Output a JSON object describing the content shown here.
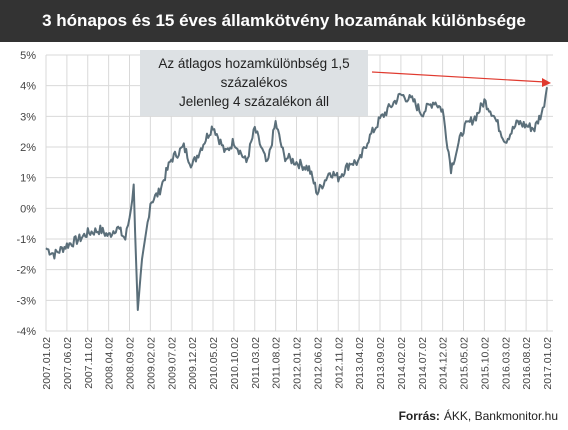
{
  "chart_data": {
    "type": "line",
    "title": "3 hónapos és 15 éves államkötvény hozamának különbsége",
    "xlabel": "",
    "ylabel": "",
    "ylim": [
      -4,
      5
    ],
    "yticks": [
      "5%",
      "4%",
      "3%",
      "2%",
      "1%",
      "0%",
      "-1%",
      "-2%",
      "-3%",
      "-4%"
    ],
    "xticks": [
      "2007.01.02",
      "2007.06.02",
      "2007.11.02",
      "2008.04.02",
      "2008.09.02",
      "2009.02.02",
      "2009.07.02",
      "2009.12.02",
      "2010.05.02",
      "2010.10.02",
      "2011.03.02",
      "2011.08.02",
      "2012.01.02",
      "2012.06.02",
      "2012.11.02",
      "2013.04.02",
      "2013.09.02",
      "2014.02.02",
      "2014.07.02",
      "2014.12.02",
      "2015.05.02",
      "2015.10.02",
      "2016.03.02",
      "2016.08.02",
      "2017.01.02"
    ],
    "grid": true,
    "line_color": "#5b6f7a",
    "annotation": {
      "lines": [
        "Az átlagos hozamkülönbség 1,5",
        "százalékos",
        "Jelenleg 4 százalékon áll"
      ],
      "arrow_color": "#e03a2f",
      "box_color": "#dde1e4"
    },
    "series": [
      {
        "x": [
          "2007.01",
          "2007.03",
          "2007.06",
          "2007.09",
          "2007.11",
          "2008.02",
          "2008.04",
          "2008.06",
          "2008.08",
          "2008.09",
          "2008.10",
          "2008.11",
          "2008.12",
          "2009.01",
          "2009.02",
          "2009.04",
          "2009.07",
          "2009.10",
          "2009.12",
          "2010.03",
          "2010.05",
          "2010.08",
          "2010.10",
          "2011.01",
          "2011.03",
          "2011.06",
          "2011.08",
          "2011.10",
          "2012.01",
          "2012.04",
          "2012.06",
          "2012.09",
          "2012.11",
          "2013.02",
          "2013.04",
          "2013.06",
          "2013.09",
          "2013.12",
          "2014.02",
          "2014.05",
          "2014.07",
          "2014.10",
          "2014.12",
          "2015.02",
          "2015.05",
          "2015.08",
          "2015.10",
          "2015.12",
          "2016.03",
          "2016.06",
          "2016.08",
          "2016.10",
          "2016.12",
          "2017.01"
        ],
        "values": [
          -1.3,
          -1.5,
          -1.2,
          -1.0,
          -0.8,
          -0.7,
          -0.9,
          -0.6,
          -1.0,
          -0.3,
          0.7,
          -3.4,
          -1.8,
          -0.8,
          0.2,
          0.5,
          1.6,
          2.0,
          1.4,
          2.2,
          2.7,
          1.8,
          2.2,
          1.5,
          2.6,
          1.4,
          2.8,
          1.7,
          1.5,
          1.3,
          0.5,
          1.2,
          1.0,
          1.5,
          1.5,
          2.2,
          2.9,
          3.4,
          3.7,
          3.5,
          3.1,
          3.5,
          3.2,
          1.3,
          2.6,
          3.0,
          3.5,
          3.1,
          2.2,
          2.8,
          2.7,
          2.6,
          3.2,
          3.95
        ]
      }
    ]
  },
  "source": {
    "label": "Forrás:",
    "text": "ÁKK, Bankmonitor.hu"
  }
}
